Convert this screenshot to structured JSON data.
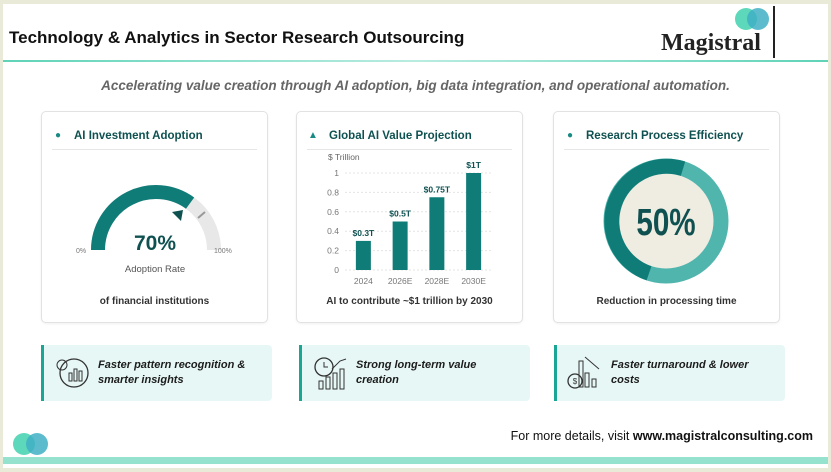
{
  "header": {
    "title": "Technology & Analytics in Sector Research Outsourcing",
    "logo_text": "Magistral"
  },
  "subtitle": "Accelerating value creation through AI adoption, big data integration, and operational automation.",
  "cards": [
    {
      "title": "AI Investment Adoption",
      "icon": "robot-icon",
      "value": "70%",
      "value_fraction": 0.7,
      "value_label": "Adoption Rate",
      "min_label": "0%",
      "max_label": "100%",
      "footer": "of financial institutions"
    },
    {
      "title": "Global AI Value Projection",
      "icon": "hand-coin-icon",
      "footer": "AI to contribute ~$1 trillion by 2030"
    },
    {
      "title": "Research Process Efficiency",
      "icon": "droplet-icon",
      "value": "50%",
      "value_fraction": 0.5,
      "footer": "Reduction in processing time"
    }
  ],
  "chart_data": {
    "type": "bar",
    "ylabel": "$ Trillion",
    "categories": [
      "2024",
      "2026E",
      "2028E",
      "2030E"
    ],
    "values": [
      0.3,
      0.5,
      0.75,
      1
    ],
    "data_labels": [
      "$0.3T",
      "$0.5T",
      "$0.75T",
      "$1T"
    ],
    "yticks": [
      "0",
      "0.2",
      "0.4",
      "0.6",
      "0.8",
      "1"
    ],
    "ylim": [
      0,
      1
    ],
    "grid": true,
    "color": "#107c78"
  },
  "highlights": [
    {
      "text": "Faster pattern recognition & smarter insights",
      "icon": "brain-chart-icon"
    },
    {
      "text": "Strong long-term value creation",
      "icon": "clock-growth-icon"
    },
    {
      "text": "Faster turnaround & lower costs",
      "icon": "cost-reduction-icon"
    }
  ],
  "footer": {
    "prefix": "For more details, visit ",
    "url": "www.magistralconsulting.com"
  },
  "colors": {
    "teal": "#107c78",
    "accent": "#4dd4b4",
    "light_teal": "#4fb5ad"
  }
}
